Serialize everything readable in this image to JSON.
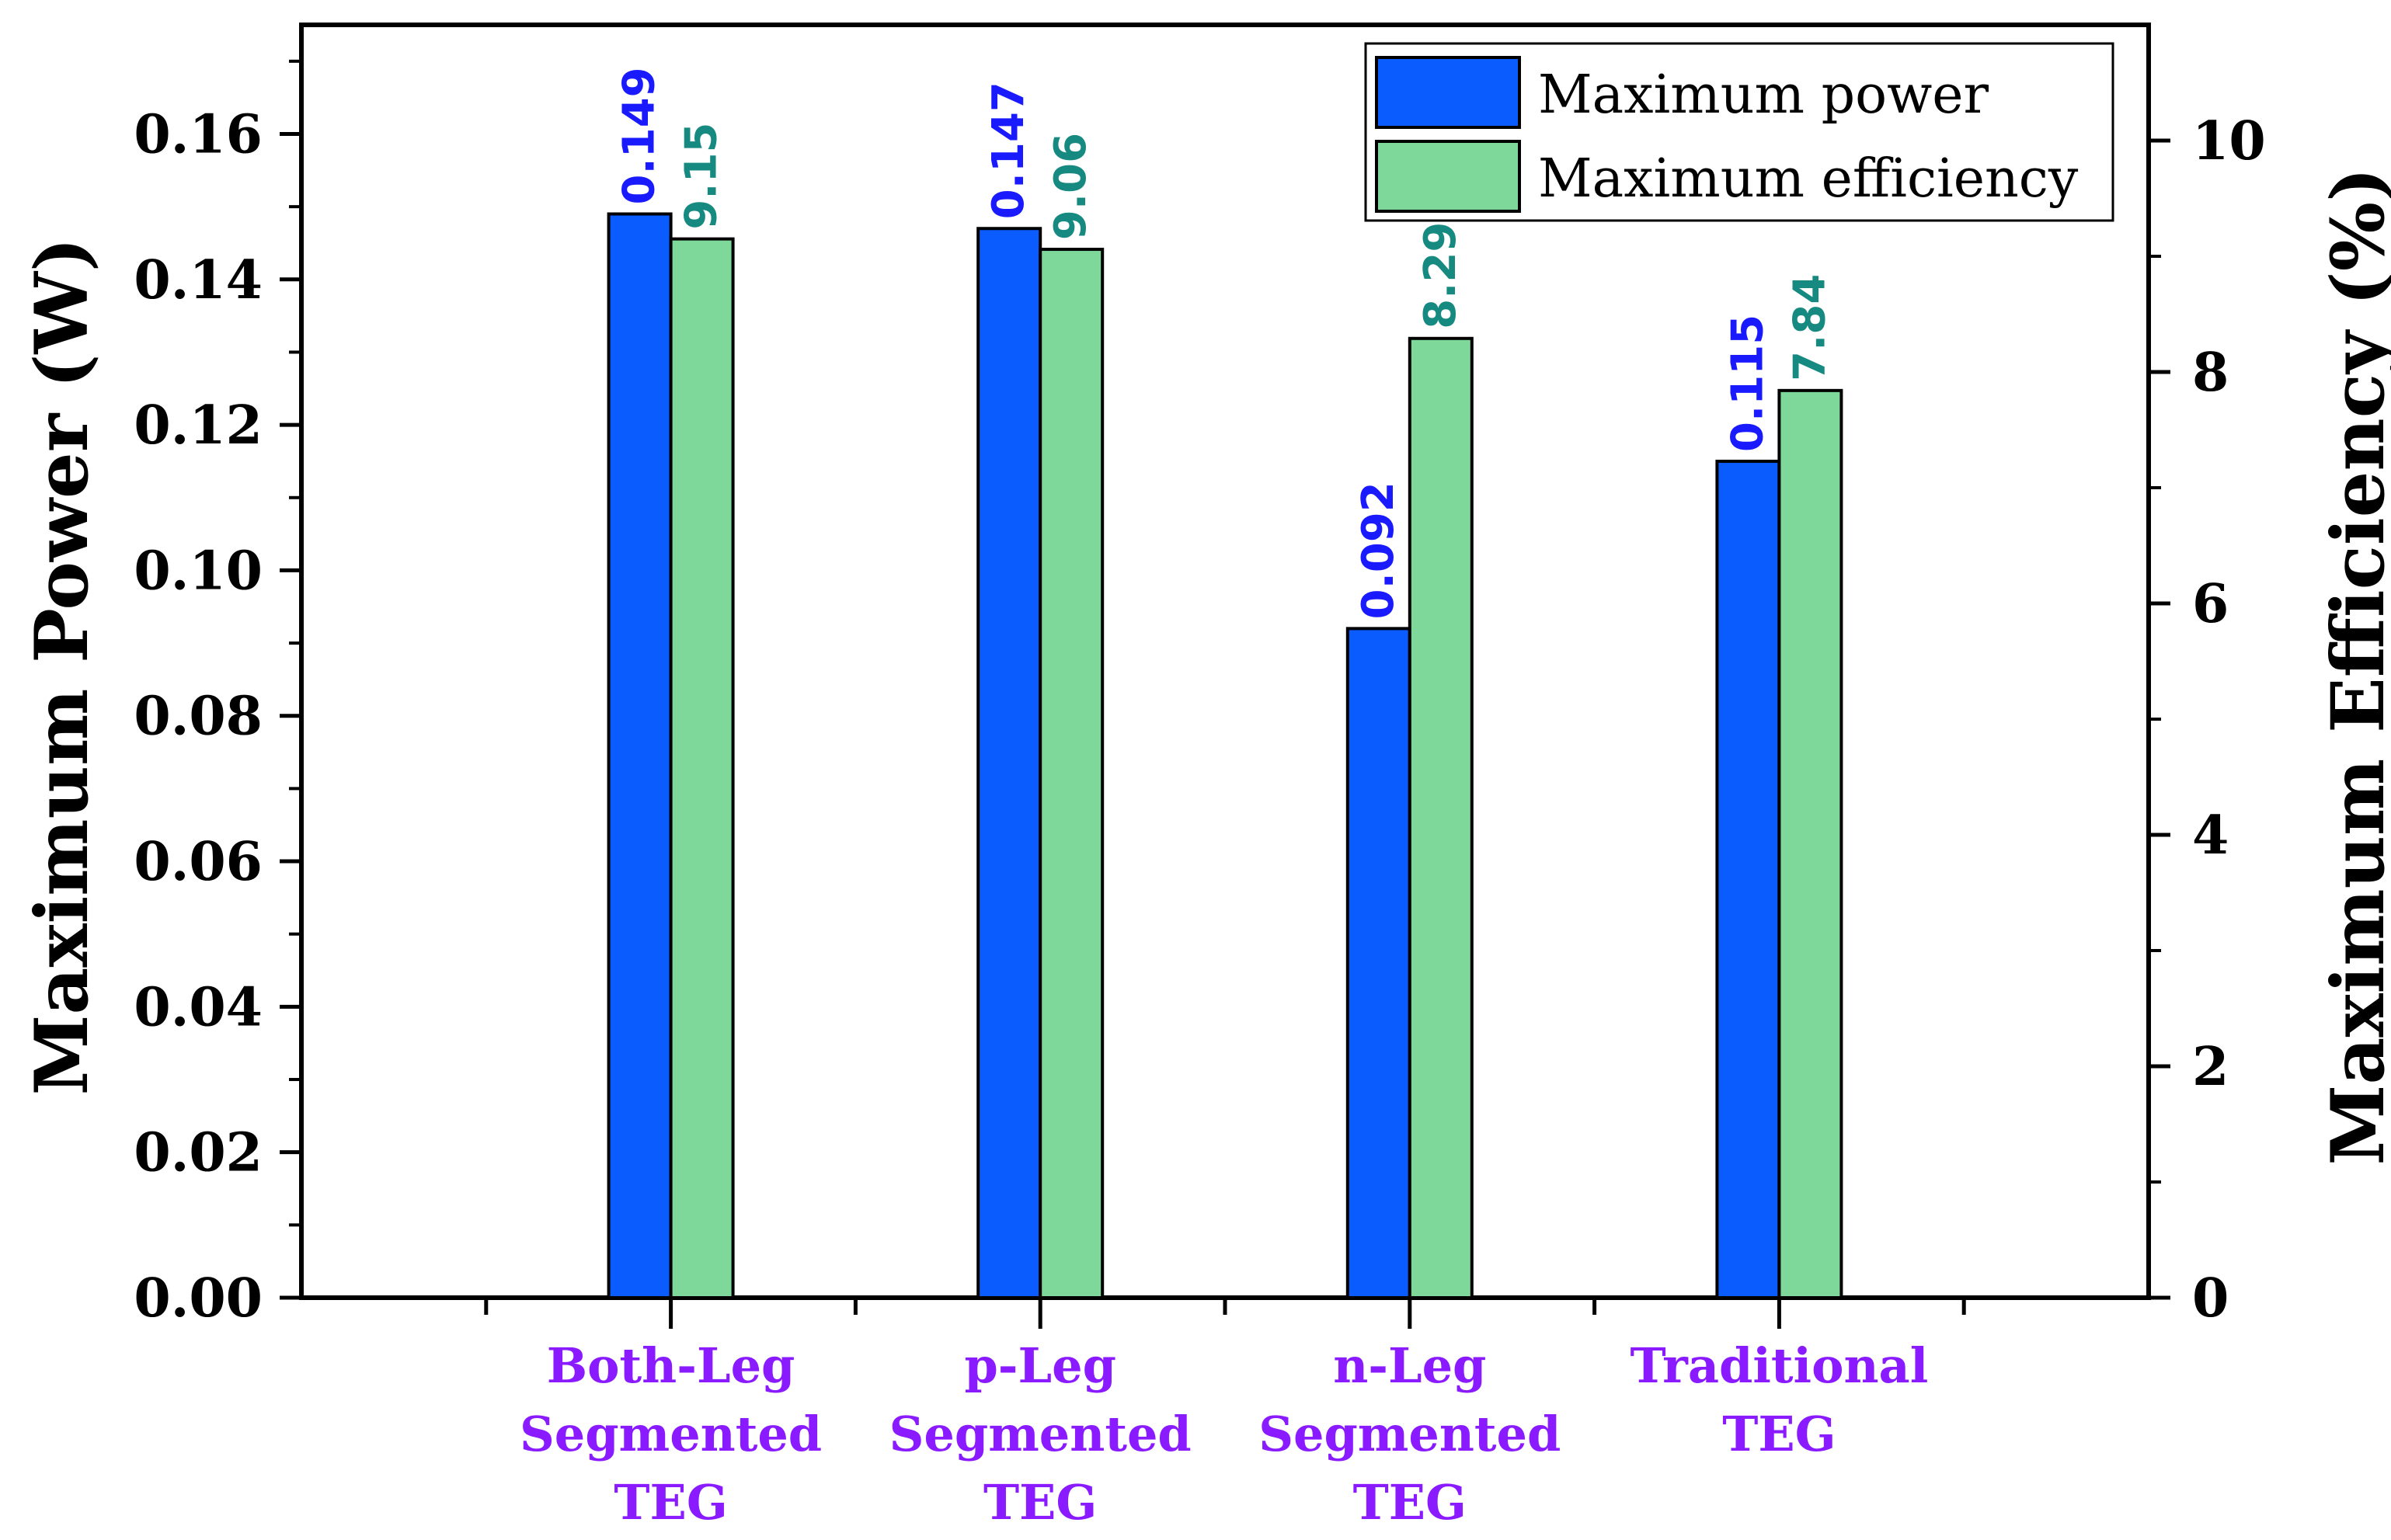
{
  "chart_data": {
    "type": "bar",
    "categories": [
      [
        "Both-Leg",
        "Segmented",
        "TEG"
      ],
      [
        "p-Leg",
        "Segmented",
        "TEG"
      ],
      [
        "n-Leg",
        "Segmented",
        "TEG"
      ],
      [
        "Traditional",
        "TEG"
      ]
    ],
    "series": [
      {
        "name": "Maximum power",
        "axis": "left",
        "values": [
          0.149,
          0.147,
          0.092,
          0.115
        ],
        "labels": [
          "0.149",
          "0.147",
          "0.092",
          "0.115"
        ],
        "color": "#0a5cff",
        "label_color": "#1a1aff"
      },
      {
        "name": "Maximum efficiency",
        "axis": "right",
        "values": [
          9.15,
          9.06,
          8.29,
          7.84
        ],
        "labels": [
          "9.15",
          "9.06",
          "8.29",
          "7.84"
        ],
        "color": "#7dd89a",
        "label_color": "#168a80"
      }
    ],
    "ylabel": "Maximum Power (W)",
    "y2label": "Maximum Efficiency (%)",
    "xlabel": "",
    "ylim": [
      0,
      0.175
    ],
    "y2lim": [
      0,
      11
    ],
    "y_ticks": [
      "0.00",
      "0.02",
      "0.04",
      "0.06",
      "0.08",
      "0.10",
      "0.12",
      "0.14",
      "0.16"
    ],
    "y2_ticks": [
      "0",
      "2",
      "4",
      "6",
      "8",
      "10"
    ],
    "category_label_color": "#8a1aff",
    "legend_position": "top-right",
    "grid": false
  }
}
